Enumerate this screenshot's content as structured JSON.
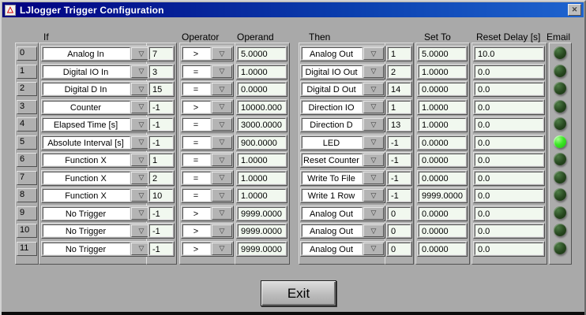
{
  "window": {
    "title": "LJlogger Trigger Configuration"
  },
  "icons": {
    "close": "✕",
    "dropdown": "▽",
    "logo": "△"
  },
  "headers": {
    "if": "If",
    "operator": "Operator",
    "operand": "Operand",
    "then": "Then",
    "set_to": "Set To",
    "reset_delay": "Reset Delay [s]",
    "email": "Email"
  },
  "exit_button": "Exit",
  "colors": {
    "titlebar_left": "#010180",
    "titlebar_right": "#1f64cf",
    "dialog_bg": "#a9a9a9",
    "led_off": "#27471f",
    "led_on": "#3ce625",
    "field_numeric_bg": "#f1f8ef",
    "field_dropdown_bg": "#ffffff"
  },
  "rows": [
    {
      "index": "0",
      "if": "Analog In",
      "ch": "7",
      "op": ">",
      "operand": "5.0000",
      "then": "Analog Out",
      "then_ch": "1",
      "set_to": "5.0000",
      "reset_delay": "10.0",
      "email_on": false
    },
    {
      "index": "1",
      "if": "Digital IO In",
      "ch": "3",
      "op": "=",
      "operand": "1.0000",
      "then": "Digital IO Out",
      "then_ch": "2",
      "set_to": "1.0000",
      "reset_delay": "0.0",
      "email_on": false
    },
    {
      "index": "2",
      "if": "Digital D In",
      "ch": "15",
      "op": "=",
      "operand": "0.0000",
      "then": "Digital D Out",
      "then_ch": "14",
      "set_to": "0.0000",
      "reset_delay": "0.0",
      "email_on": false
    },
    {
      "index": "3",
      "if": "Counter",
      "ch": "-1",
      "op": ">",
      "operand": "10000.000",
      "then": "Direction IO",
      "then_ch": "1",
      "set_to": "1.0000",
      "reset_delay": "0.0",
      "email_on": false
    },
    {
      "index": "4",
      "if": "Elapsed Time [s]",
      "ch": "-1",
      "op": "=",
      "operand": "3000.0000",
      "then": "Direction D",
      "then_ch": "13",
      "set_to": "1.0000",
      "reset_delay": "0.0",
      "email_on": false
    },
    {
      "index": "5",
      "if": "Absolute Interval [s]",
      "ch": "-1",
      "op": "=",
      "operand": "900.0000",
      "then": "LED",
      "then_ch": "-1",
      "set_to": "0.0000",
      "reset_delay": "0.0",
      "email_on": true
    },
    {
      "index": "6",
      "if": "Function X",
      "ch": "1",
      "op": "=",
      "operand": "1.0000",
      "then": "Reset Counter",
      "then_ch": "-1",
      "set_to": "0.0000",
      "reset_delay": "0.0",
      "email_on": false
    },
    {
      "index": "7",
      "if": "Function X",
      "ch": "2",
      "op": "=",
      "operand": "1.0000",
      "then": "Write To File",
      "then_ch": "-1",
      "set_to": "0.0000",
      "reset_delay": "0.0",
      "email_on": false
    },
    {
      "index": "8",
      "if": "Function X",
      "ch": "10",
      "op": "=",
      "operand": "1.0000",
      "then": "Write 1 Row",
      "then_ch": "-1",
      "set_to": "9999.0000",
      "reset_delay": "0.0",
      "email_on": false
    },
    {
      "index": "9",
      "if": "No Trigger",
      "ch": "-1",
      "op": ">",
      "operand": "9999.0000",
      "then": "Analog Out",
      "then_ch": "0",
      "set_to": "0.0000",
      "reset_delay": "0.0",
      "email_on": false
    },
    {
      "index": "10",
      "if": "No Trigger",
      "ch": "-1",
      "op": ">",
      "operand": "9999.0000",
      "then": "Analog Out",
      "then_ch": "0",
      "set_to": "0.0000",
      "reset_delay": "0.0",
      "email_on": false
    },
    {
      "index": "11",
      "if": "No Trigger",
      "ch": "-1",
      "op": ">",
      "operand": "9999.0000",
      "then": "Analog Out",
      "then_ch": "0",
      "set_to": "0.0000",
      "reset_delay": "0.0",
      "email_on": false
    }
  ]
}
